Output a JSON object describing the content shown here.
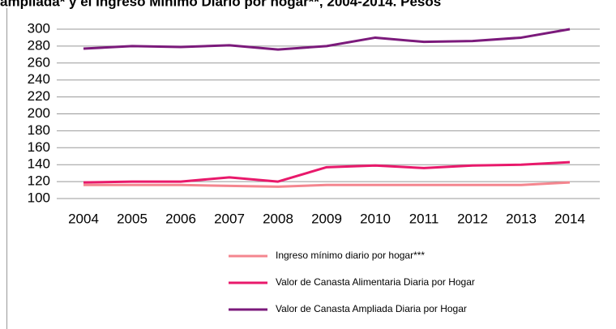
{
  "chart_data": {
    "type": "line",
    "title": "ampliada* y el Ingreso Mínimo Diario por hogar**, 2004-2014. Pesos",
    "categories": [
      "2004",
      "2005",
      "2006",
      "2007",
      "2008",
      "2009",
      "2010",
      "2011",
      "2012",
      "2013",
      "2014"
    ],
    "series": [
      {
        "name": "Ingreso mínimo diario por hogar***",
        "color": "#f4868f",
        "values": [
          116,
          116,
          116,
          115,
          114,
          116,
          116,
          116,
          116,
          116,
          119
        ]
      },
      {
        "name": "Valor de Canasta Alimentaria Diaria por Hogar",
        "color": "#e8196b",
        "values": [
          119,
          120,
          120,
          125,
          120,
          137,
          139,
          136,
          139,
          140,
          143
        ]
      },
      {
        "name": "Valor de Canasta Ampliada Diaria por Hogar",
        "color": "#7b1a7b",
        "values": [
          277,
          280,
          279,
          281,
          276,
          280,
          290,
          285,
          286,
          290,
          300
        ]
      }
    ],
    "ylim": [
      100,
      300
    ],
    "yticks": [
      100,
      120,
      140,
      160,
      180,
      200,
      220,
      240,
      260,
      280,
      300
    ],
    "grid": true,
    "legend": "bottom"
  }
}
